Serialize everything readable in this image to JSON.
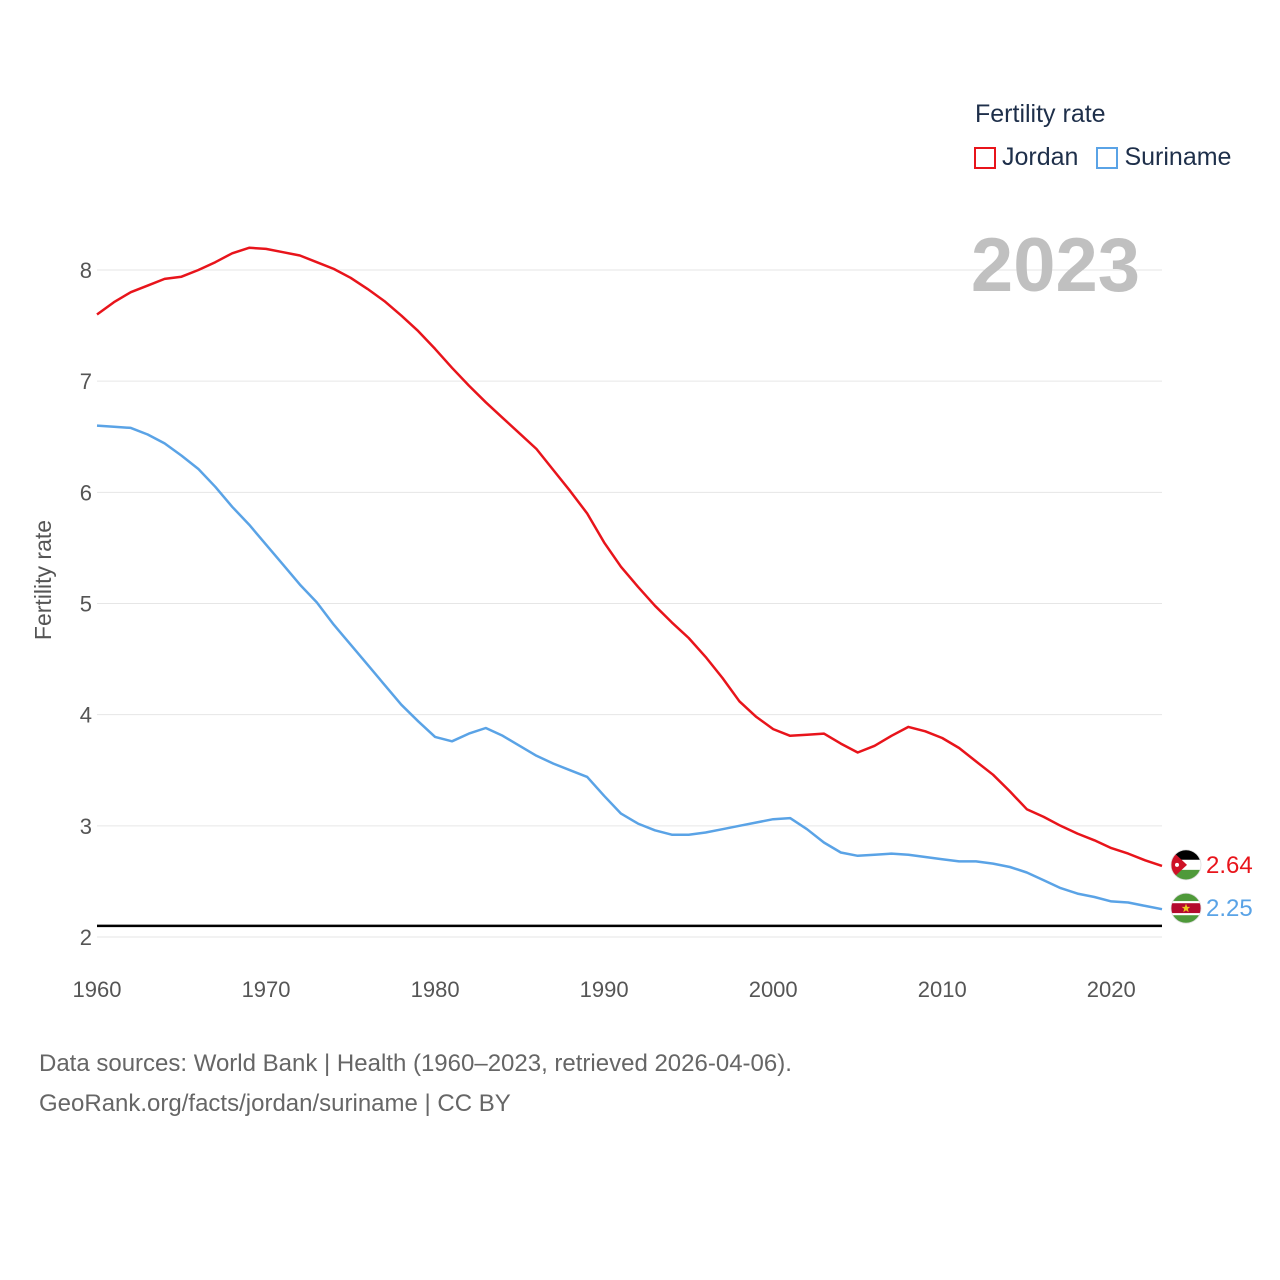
{
  "legend": {
    "title": "Fertility rate",
    "items": [
      {
        "label": "Jordan",
        "color": "#e8141b"
      },
      {
        "label": "Suriname",
        "color": "#5aa3e6"
      }
    ]
  },
  "watermark_year": "2023",
  "footer": {
    "line1": "Data sources: World Bank | Health (1960–2023, retrieved 2026-04-06).",
    "line2": "GeoRank.org/facts/jordan/suriname | CC BY"
  },
  "chart_data": {
    "type": "line",
    "ylabel": "Fertility rate",
    "xlabel": "",
    "xlim": [
      1960,
      2023
    ],
    "ylim": [
      1.9,
      8.4
    ],
    "yticks": [
      2,
      3,
      4,
      5,
      6,
      7,
      8
    ],
    "xticks": [
      1960,
      1970,
      1980,
      1990,
      2000,
      2010,
      2020
    ],
    "reference_line": {
      "y": 2.1,
      "color": "#000000"
    },
    "x": [
      1960,
      1961,
      1962,
      1963,
      1964,
      1965,
      1966,
      1967,
      1968,
      1969,
      1970,
      1971,
      1972,
      1973,
      1974,
      1975,
      1976,
      1977,
      1978,
      1979,
      1980,
      1981,
      1982,
      1983,
      1984,
      1985,
      1986,
      1987,
      1988,
      1989,
      1990,
      1991,
      1992,
      1993,
      1994,
      1995,
      1996,
      1997,
      1998,
      1999,
      2000,
      2001,
      2002,
      2003,
      2004,
      2005,
      2006,
      2007,
      2008,
      2009,
      2010,
      2011,
      2012,
      2013,
      2014,
      2015,
      2016,
      2017,
      2018,
      2019,
      2020,
      2021,
      2022,
      2023
    ],
    "series": [
      {
        "name": "Jordan",
        "color": "#e8141b",
        "end_label": "2.64",
        "values": [
          7.6,
          7.71,
          7.8,
          7.86,
          7.92,
          7.94,
          8.0,
          8.07,
          8.15,
          8.2,
          8.19,
          8.16,
          8.13,
          8.07,
          8.01,
          7.93,
          7.83,
          7.72,
          7.59,
          7.45,
          7.29,
          7.12,
          6.96,
          6.81,
          6.67,
          6.53,
          6.39,
          6.2,
          6.01,
          5.81,
          5.55,
          5.33,
          5.15,
          4.98,
          4.83,
          4.69,
          4.52,
          4.33,
          4.12,
          3.98,
          3.87,
          3.81,
          3.82,
          3.83,
          3.74,
          3.66,
          3.72,
          3.81,
          3.89,
          3.85,
          3.79,
          3.7,
          3.58,
          3.46,
          3.31,
          3.15,
          3.08,
          3.0,
          2.93,
          2.87,
          2.8,
          2.75,
          2.69,
          2.64
        ]
      },
      {
        "name": "Suriname",
        "color": "#5aa3e6",
        "end_label": "2.25",
        "values": [
          6.6,
          6.59,
          6.58,
          6.52,
          6.44,
          6.33,
          6.21,
          6.05,
          5.87,
          5.71,
          5.53,
          5.35,
          5.17,
          5.01,
          4.81,
          4.63,
          4.45,
          4.27,
          4.09,
          3.94,
          3.8,
          3.76,
          3.83,
          3.88,
          3.81,
          3.72,
          3.63,
          3.56,
          3.5,
          3.44,
          3.27,
          3.11,
          3.02,
          2.96,
          2.92,
          2.92,
          2.94,
          2.97,
          3.0,
          3.03,
          3.06,
          3.07,
          2.97,
          2.85,
          2.76,
          2.73,
          2.74,
          2.75,
          2.74,
          2.72,
          2.7,
          2.68,
          2.68,
          2.66,
          2.63,
          2.58,
          2.51,
          2.44,
          2.39,
          2.36,
          2.32,
          2.31,
          2.28,
          2.25
        ]
      }
    ]
  }
}
